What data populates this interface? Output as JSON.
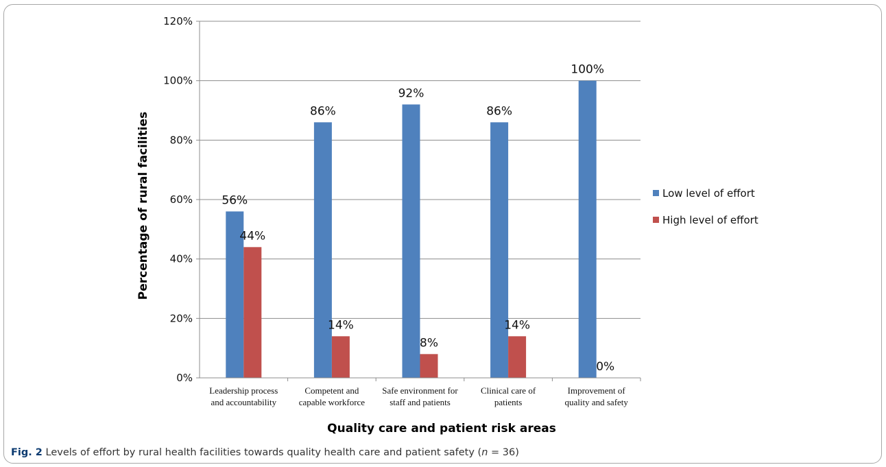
{
  "figure": {
    "label": "Fig. 2",
    "caption_text": "Levels of effort by rural health facilities towards quality health care and patient safety (",
    "caption_n": "n",
    "caption_tail": " = 36)"
  },
  "chart_data": {
    "type": "bar",
    "title": "",
    "xlabel": "Quality care and patient risk areas",
    "ylabel": "Percentage of rural facilities",
    "ylim": [
      0,
      120
    ],
    "yticks": [
      0,
      20,
      40,
      60,
      80,
      100,
      120
    ],
    "ytick_labels": [
      "0%",
      "20%",
      "40%",
      "60%",
      "80%",
      "100%",
      "120%"
    ],
    "grid": true,
    "legend_position": "right",
    "categories": [
      [
        "Leadership process",
        "and accountability"
      ],
      [
        "Competent and",
        "capable workforce"
      ],
      [
        "Safe environment for",
        "staff and patients"
      ],
      [
        "Clinical care of",
        "patients"
      ],
      [
        "Improvement of",
        "quality and safety"
      ]
    ],
    "series": [
      {
        "name": "Low level of effort",
        "color": "#4f81bd",
        "values": [
          56,
          86,
          92,
          86,
          100
        ],
        "labels": [
          "56%",
          "86%",
          "92%",
          "86%",
          "100%"
        ]
      },
      {
        "name": "High level of effort",
        "color": "#c0504d",
        "values": [
          44,
          14,
          8,
          14,
          0
        ],
        "labels": [
          "44%",
          "14%",
          "8%",
          "14%",
          "0%"
        ]
      }
    ]
  }
}
